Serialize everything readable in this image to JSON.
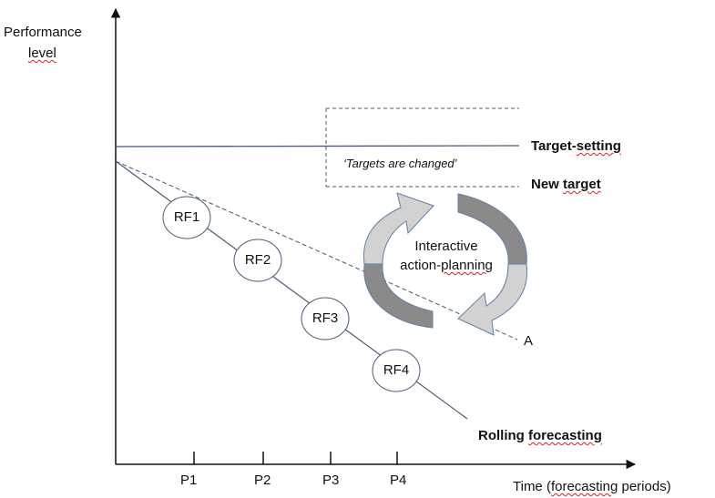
{
  "axes": {
    "y_label_line1": "Performance",
    "y_label_line2": "level",
    "x_label_prefix": "Time (",
    "x_label_squiggle": "forecasting",
    "x_label_suffix": " periods)"
  },
  "periods": [
    "P1",
    "P2",
    "P3",
    "P4"
  ],
  "forecasts": [
    "RF1",
    "RF2",
    "RF3",
    "RF4"
  ],
  "lines": {
    "target_setting_prefix": "Target-",
    "target_setting_squiggle": "setting",
    "new_target_prefix": "New ",
    "new_target_squiggle": "target",
    "rolling_prefix": "Rolling ",
    "rolling_squiggle": "forecasting",
    "dashed_end_label": "A"
  },
  "annotation": {
    "targets_changed": "‘Targets are changed’"
  },
  "cycle": {
    "line1": "Interactive",
    "line2_prefix": "action-",
    "line2_squiggle": "planning"
  },
  "colors": {
    "line": "#4a5a78",
    "arrow_light": "#d2d2d2",
    "arrow_dark": "#8a8a8a",
    "arrow_stroke": "#5f7fa8",
    "squiggle": "#e02020"
  }
}
